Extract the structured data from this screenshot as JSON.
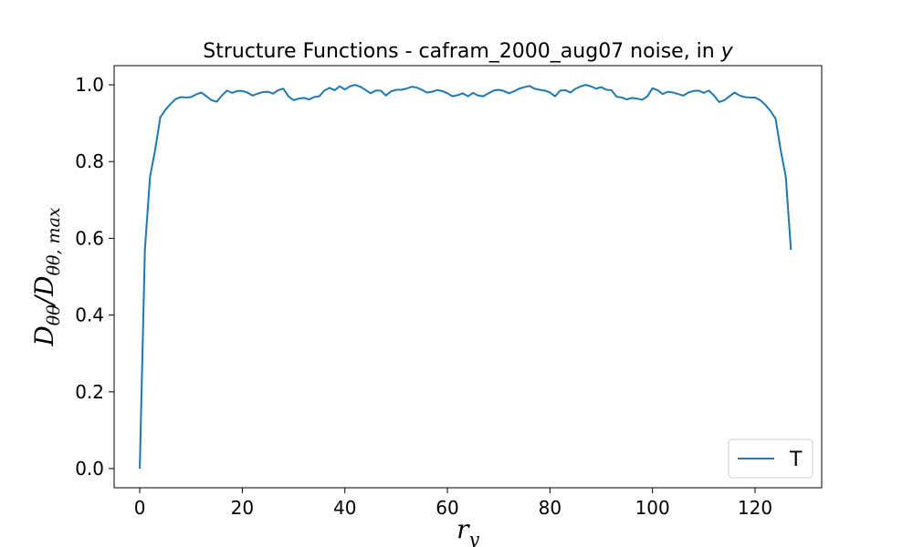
{
  "chart_data": {
    "type": "line",
    "title": "Structure Functions - cafram_2000_aug07 noise, in y",
    "xlabel": "r_y",
    "ylabel": "D_θθ / D_θθ,max",
    "xlim": [
      -5,
      133
    ],
    "ylim": [
      -0.05,
      1.05
    ],
    "xticks": [
      0,
      20,
      40,
      60,
      80,
      100,
      120
    ],
    "yticks": [
      0.0,
      0.2,
      0.4,
      0.6,
      0.8,
      1.0
    ],
    "xtick_labels": [
      "0",
      "20",
      "40",
      "60",
      "80",
      "100",
      "120"
    ],
    "ytick_labels": [
      "0.0",
      "0.2",
      "0.4",
      "0.6",
      "0.8",
      "1.0"
    ],
    "grid": false,
    "legend_position": "bottom-right",
    "series": [
      {
        "name": "T",
        "color": "#1f77b4",
        "x": [
          0,
          1,
          2,
          3,
          4,
          5,
          6,
          7,
          8,
          9,
          10,
          11,
          12,
          13,
          14,
          15,
          16,
          17,
          18,
          19,
          20,
          21,
          22,
          23,
          24,
          25,
          26,
          27,
          28,
          29,
          30,
          31,
          32,
          33,
          34,
          35,
          36,
          37,
          38,
          39,
          40,
          41,
          42,
          43,
          44,
          45,
          46,
          47,
          48,
          49,
          50,
          51,
          52,
          53,
          54,
          55,
          56,
          57,
          58,
          59,
          60,
          61,
          62,
          63,
          64,
          65,
          66,
          67,
          68,
          69,
          70,
          71,
          72,
          73,
          74,
          75,
          76,
          77,
          78,
          79,
          80,
          81,
          82,
          83,
          84,
          85,
          86,
          87,
          88,
          89,
          90,
          91,
          92,
          93,
          94,
          95,
          96,
          97,
          98,
          99,
          100,
          101,
          102,
          103,
          104,
          105,
          106,
          107,
          108,
          109,
          110,
          111,
          112,
          113,
          114,
          115,
          116,
          117,
          118,
          119,
          120,
          121,
          122,
          123,
          124,
          125,
          126,
          127
        ],
        "y": [
          0.0,
          0.57,
          0.76,
          0.83,
          0.915,
          0.935,
          0.95,
          0.963,
          0.968,
          0.967,
          0.968,
          0.975,
          0.98,
          0.97,
          0.96,
          0.956,
          0.972,
          0.985,
          0.979,
          0.984,
          0.984,
          0.98,
          0.972,
          0.977,
          0.981,
          0.982,
          0.977,
          0.986,
          0.99,
          0.97,
          0.96,
          0.964,
          0.966,
          0.962,
          0.968,
          0.97,
          0.985,
          0.992,
          0.986,
          0.996,
          0.988,
          0.996,
          1.0,
          0.995,
          0.987,
          0.978,
          0.985,
          0.985,
          0.972,
          0.983,
          0.987,
          0.987,
          0.99,
          0.995,
          0.993,
          0.987,
          0.98,
          0.982,
          0.986,
          0.984,
          0.978,
          0.97,
          0.973,
          0.978,
          0.97,
          0.979,
          0.972,
          0.97,
          0.978,
          0.985,
          0.987,
          0.984,
          0.978,
          0.983,
          0.99,
          0.994,
          0.997,
          0.99,
          0.987,
          0.985,
          0.98,
          0.97,
          0.985,
          0.986,
          0.98,
          0.99,
          0.996,
          1.0,
          0.996,
          0.99,
          0.994,
          0.987,
          0.986,
          0.969,
          0.967,
          0.962,
          0.966,
          0.964,
          0.961,
          0.97,
          0.991,
          0.986,
          0.976,
          0.982,
          0.98,
          0.976,
          0.972,
          0.98,
          0.984,
          0.985,
          0.979,
          0.985,
          0.972,
          0.955,
          0.96,
          0.97,
          0.98,
          0.972,
          0.968,
          0.967,
          0.967,
          0.96,
          0.948,
          0.932,
          0.912,
          0.83,
          0.76,
          0.57
        ]
      }
    ]
  }
}
